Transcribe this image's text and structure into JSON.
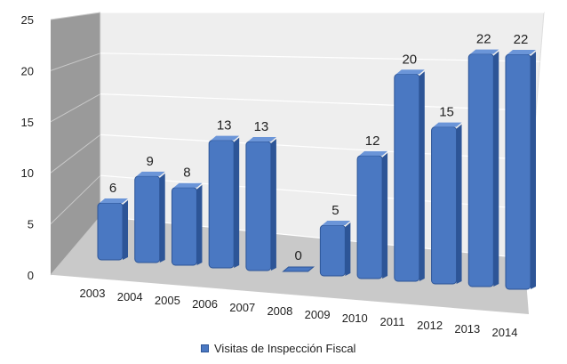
{
  "chart_data": {
    "type": "bar",
    "categories": [
      "2003",
      "2004",
      "2005",
      "2006",
      "2007",
      "2008",
      "2009",
      "2010",
      "2011",
      "2012",
      "2013",
      "2014"
    ],
    "series": [
      {
        "name": "Visitas de Inspección Fiscal",
        "values": [
          6,
          9,
          8,
          13,
          13,
          0,
          5,
          12,
          20,
          15,
          22,
          22
        ]
      }
    ],
    "y_ticks": [
      "0",
      "5",
      "10",
      "15",
      "20",
      "25"
    ],
    "ylim": [
      0,
      25
    ],
    "grid": true,
    "legend_position": "bottom",
    "bar_color": "#4a78c2",
    "bar_dark": "#2d5597",
    "wall_color": "#eeeeee",
    "side_wall_color": "#9a9a9a",
    "floor_color": "#c9c9c9"
  }
}
